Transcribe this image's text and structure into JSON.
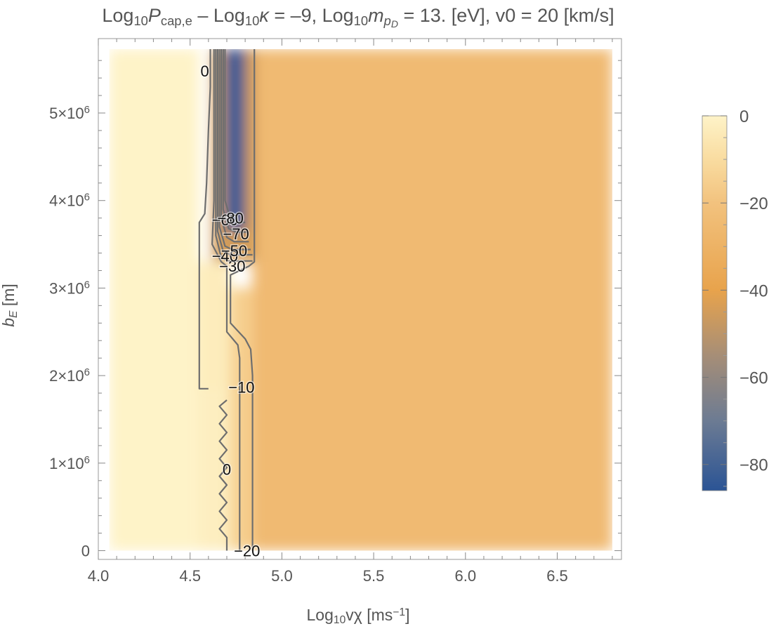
{
  "chart_data": {
    "type": "heatmap",
    "title": {
      "parts": [
        {
          "t": "Log"
        },
        {
          "t": "10",
          "sub": true
        },
        {
          "t": "P",
          "italic": true
        },
        {
          "t": "cap,e",
          "sub": true
        },
        {
          "t": " – Log"
        },
        {
          "t": "10",
          "sub": true
        },
        {
          "t": "κ",
          "italic": true
        },
        {
          "t": " = –9, Log"
        },
        {
          "t": "10",
          "sub": true
        },
        {
          "t": "m",
          "italic": true
        },
        {
          "t": "p",
          "sub": true,
          "italic": true
        },
        {
          "t": "D",
          "subsub": true,
          "italic": true
        },
        {
          "t": " = 13. [eV], v0 = 20 [km/s]"
        }
      ]
    },
    "xlabel": {
      "parts": [
        {
          "t": "Log"
        },
        {
          "t": "10",
          "sub": true
        },
        {
          "t": "vχ [ms"
        },
        {
          "t": "−1",
          "sup": true
        },
        {
          "t": "]"
        }
      ]
    },
    "ylabel": {
      "parts": [
        {
          "t": "b",
          "italic": true
        },
        {
          "t": "E",
          "sub": true,
          "italic": true
        },
        {
          "t": " [m]"
        }
      ]
    },
    "xlim": [
      4.0,
      6.85
    ],
    "ylim": [
      -100000,
      5850000
    ],
    "data_extent": {
      "x": [
        4.06,
        6.8
      ],
      "y": [
        0,
        5730000
      ]
    },
    "x_ticks": [
      {
        "v": 4.0,
        "label": "4.0"
      },
      {
        "v": 4.5,
        "label": "4.5"
      },
      {
        "v": 5.0,
        "label": "5.0"
      },
      {
        "v": 5.5,
        "label": "5.5"
      },
      {
        "v": 6.0,
        "label": "6.0"
      },
      {
        "v": 6.5,
        "label": "6.5"
      }
    ],
    "y_ticks": [
      {
        "v": 0,
        "label": "0"
      },
      {
        "v": 1000000,
        "mantissa": "1",
        "times": "×",
        "base": "10",
        "exp": "6"
      },
      {
        "v": 2000000,
        "mantissa": "2",
        "times": "×",
        "base": "10",
        "exp": "6"
      },
      {
        "v": 3000000,
        "mantissa": "3",
        "times": "×",
        "base": "10",
        "exp": "6"
      },
      {
        "v": 4000000,
        "mantissa": "4",
        "times": "×",
        "base": "10",
        "exp": "6"
      },
      {
        "v": 5000000,
        "mantissa": "5",
        "times": "×",
        "base": "10",
        "exp": "6"
      }
    ],
    "colorbar": {
      "range": [
        -86,
        0
      ],
      "ticks": [
        {
          "v": 0,
          "label": "0"
        },
        {
          "v": -20,
          "label": "−20"
        },
        {
          "v": -40,
          "label": "−40"
        },
        {
          "v": -60,
          "label": "−60"
        },
        {
          "v": -80,
          "label": "−80"
        }
      ],
      "colors": [
        {
          "v": 0,
          "color": "#fef3c8"
        },
        {
          "v": -10,
          "color": "#f9dca0"
        },
        {
          "v": -20,
          "color": "#f2c27e"
        },
        {
          "v": -40,
          "color": "#e8a34c"
        },
        {
          "v": -55,
          "color": "#a68e77"
        },
        {
          "v": -70,
          "color": "#6c7b93"
        },
        {
          "v": -86,
          "color": "#2b5495"
        }
      ]
    },
    "field_regions": [
      {
        "x": [
          4.06,
          4.55
        ],
        "y": [
          0,
          5730000
        ],
        "value": 0
      },
      {
        "x": [
          4.55,
          4.72
        ],
        "y": [
          1850000,
          3300000
        ],
        "value": -3
      },
      {
        "x": [
          4.55,
          4.72
        ],
        "y": [
          0,
          1850000
        ],
        "value": -2
      },
      {
        "x": [
          4.72,
          4.84
        ],
        "y": [
          0,
          3000000
        ],
        "value": -15
      },
      {
        "x": [
          4.84,
          6.8
        ],
        "y": [
          0,
          5730000
        ],
        "value": -25
      },
      {
        "x": [
          4.62,
          4.86
        ],
        "y": [
          3300000,
          5730000
        ],
        "value": -45
      },
      {
        "x": [
          4.69,
          4.8
        ],
        "y": [
          3650000,
          5730000
        ],
        "value": -84
      }
    ],
    "contours": [
      {
        "level": 0,
        "points": [
          [
            4.61,
            5730000
          ],
          [
            4.61,
            5300000
          ],
          [
            4.6,
            4800000
          ],
          [
            4.59,
            4200000
          ],
          [
            4.58,
            3850000
          ],
          [
            4.55,
            3750000
          ],
          [
            4.55,
            2300000
          ],
          [
            4.55,
            1850000
          ],
          [
            4.6,
            1850000
          ]
        ]
      },
      {
        "level": 0,
        "points": [
          [
            4.7,
            1720000
          ],
          [
            4.66,
            1650000
          ],
          [
            4.7,
            1550000
          ],
          [
            4.66,
            1450000
          ],
          [
            4.7,
            1350000
          ],
          [
            4.66,
            1250000
          ],
          [
            4.7,
            1150000
          ],
          [
            4.66,
            1050000
          ],
          [
            4.7,
            950000
          ],
          [
            4.66,
            850000
          ],
          [
            4.7,
            750000
          ],
          [
            4.66,
            650000
          ],
          [
            4.7,
            550000
          ],
          [
            4.66,
            450000
          ],
          [
            4.7,
            350000
          ],
          [
            4.66,
            250000
          ],
          [
            4.7,
            150000
          ],
          [
            4.7,
            0
          ]
        ]
      },
      {
        "level": -10,
        "points": [
          [
            4.63,
            5730000
          ],
          [
            4.63,
            4000000
          ],
          [
            4.62,
            3500000
          ],
          [
            4.67,
            3300000
          ],
          [
            4.7,
            3250000
          ],
          [
            4.7,
            2500000
          ],
          [
            4.76,
            2350000
          ],
          [
            4.77,
            2200000
          ],
          [
            4.77,
            0
          ]
        ]
      },
      {
        "level": -20,
        "points": [
          [
            4.85,
            5730000
          ],
          [
            4.85,
            3300000
          ],
          [
            4.82,
            3250000
          ],
          [
            4.72,
            3150000
          ],
          [
            4.72,
            2600000
          ],
          [
            4.8,
            2420000
          ],
          [
            4.83,
            2300000
          ],
          [
            4.84,
            2000000
          ],
          [
            4.84,
            0
          ]
        ]
      },
      {
        "level": -30,
        "points": [
          [
            4.64,
            5730000
          ],
          [
            4.64,
            3600000
          ],
          [
            4.67,
            3350000
          ],
          [
            4.71,
            3310000
          ],
          [
            4.84,
            3310000
          ]
        ]
      },
      {
        "level": -40,
        "points": [
          [
            4.65,
            5730000
          ],
          [
            4.65,
            3650000
          ],
          [
            4.68,
            3420000
          ],
          [
            4.72,
            3380000
          ],
          [
            4.84,
            3380000
          ]
        ]
      },
      {
        "level": -50,
        "points": [
          [
            4.66,
            5730000
          ],
          [
            4.66,
            3700000
          ],
          [
            4.69,
            3480000
          ],
          [
            4.73,
            3440000
          ],
          [
            4.83,
            3440000
          ]
        ]
      },
      {
        "level": -60,
        "points": [
          [
            4.67,
            5730000
          ],
          [
            4.67,
            3800000
          ],
          [
            4.7,
            3580000
          ],
          [
            4.74,
            3530000
          ],
          [
            4.82,
            3530000
          ]
        ]
      },
      {
        "level": -70,
        "points": [
          [
            4.68,
            5730000
          ],
          [
            4.68,
            3900000
          ],
          [
            4.71,
            3680000
          ],
          [
            4.75,
            3640000
          ],
          [
            4.81,
            3640000
          ]
        ]
      },
      {
        "level": -80,
        "points": [
          [
            4.69,
            5730000
          ],
          [
            4.69,
            4000000
          ],
          [
            4.72,
            3790000
          ],
          [
            4.76,
            3750000
          ],
          [
            4.8,
            3750000
          ]
        ]
      }
    ],
    "contour_labels": [
      {
        "x": 4.58,
        "y": 5480000,
        "text": "0"
      },
      {
        "x": 4.78,
        "y": 1870000,
        "text": "−10"
      },
      {
        "x": 4.7,
        "y": 930000,
        "text": "0"
      },
      {
        "x": 4.81,
        "y": 0,
        "text": "−20"
      },
      {
        "x": 4.73,
        "y": 3250000,
        "text": "−30"
      },
      {
        "x": 4.69,
        "y": 3370000,
        "text": "−40"
      },
      {
        "x": 4.74,
        "y": 3430000,
        "text": "−50"
      },
      {
        "x": 4.69,
        "y": 3780000,
        "text": "−60"
      },
      {
        "x": 4.75,
        "y": 3620000,
        "text": "−70"
      },
      {
        "x": 4.72,
        "y": 3800000,
        "text": "−80"
      }
    ]
  }
}
